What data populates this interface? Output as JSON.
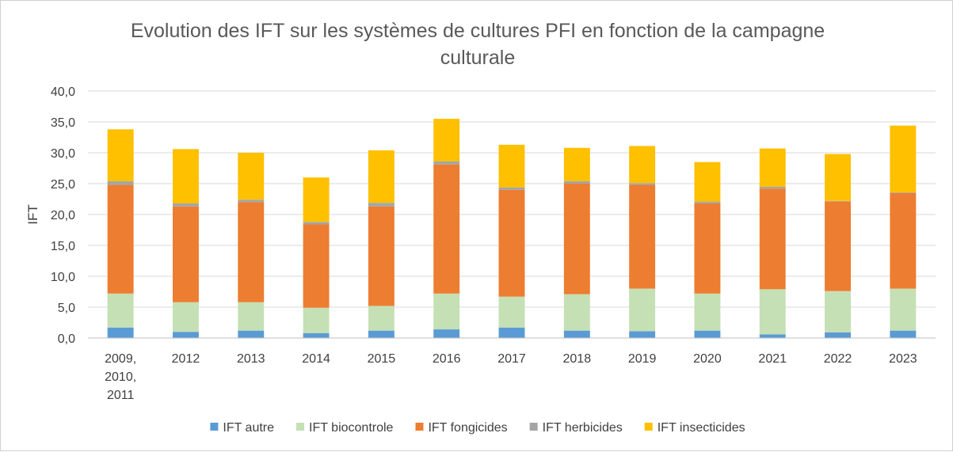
{
  "chart_data": {
    "type": "bar",
    "stacked": true,
    "title_lines": [
      "Evolution des IFT sur les systèmes de cultures PFI en fonction de la campagne",
      "culturale"
    ],
    "ylabel": "IFT",
    "xlabel": "",
    "ylim": [
      0,
      40
    ],
    "ytick_step": 5,
    "ytick_labels": [
      "0,0",
      "5,0",
      "10,0",
      "15,0",
      "20,0",
      "25,0",
      "30,0",
      "35,0",
      "40,0"
    ],
    "grid": true,
    "legend_position": "bottom",
    "categories": [
      [
        "2009,",
        "2010,",
        "2011"
      ],
      [
        "2012"
      ],
      [
        "2013"
      ],
      [
        "2014"
      ],
      [
        "2015"
      ],
      [
        "2016"
      ],
      [
        "2017"
      ],
      [
        "2018"
      ],
      [
        "2019"
      ],
      [
        "2020"
      ],
      [
        "2021"
      ],
      [
        "2022"
      ],
      [
        "2023"
      ]
    ],
    "series": [
      {
        "name": "IFT autre",
        "color": "#5b9bd5",
        "values": [
          1.7,
          1.0,
          1.2,
          0.8,
          1.2,
          1.4,
          1.7,
          1.2,
          1.1,
          1.2,
          0.6,
          0.9,
          1.2
        ]
      },
      {
        "name": "IFT biocontrole",
        "color": "#c5e0b4",
        "values": [
          5.5,
          4.8,
          4.6,
          4.1,
          4.0,
          5.8,
          5.0,
          5.9,
          6.9,
          6.0,
          7.3,
          6.7,
          6.8
        ]
      },
      {
        "name": "IFT fongicides",
        "color": "#ed7d31",
        "values": [
          17.6,
          15.5,
          16.2,
          13.5,
          16.1,
          20.9,
          17.3,
          17.9,
          16.8,
          14.6,
          16.3,
          14.5,
          15.5
        ]
      },
      {
        "name": "IFT herbicides",
        "color": "#a5a5a5",
        "values": [
          0.6,
          0.5,
          0.4,
          0.4,
          0.6,
          0.5,
          0.4,
          0.4,
          0.3,
          0.3,
          0.3,
          0.1,
          0.1
        ]
      },
      {
        "name": "IFT insecticides",
        "color": "#ffc000",
        "values": [
          8.4,
          8.8,
          7.6,
          7.2,
          8.5,
          6.9,
          6.9,
          5.4,
          6.0,
          6.4,
          6.2,
          7.6,
          10.8
        ]
      }
    ]
  }
}
